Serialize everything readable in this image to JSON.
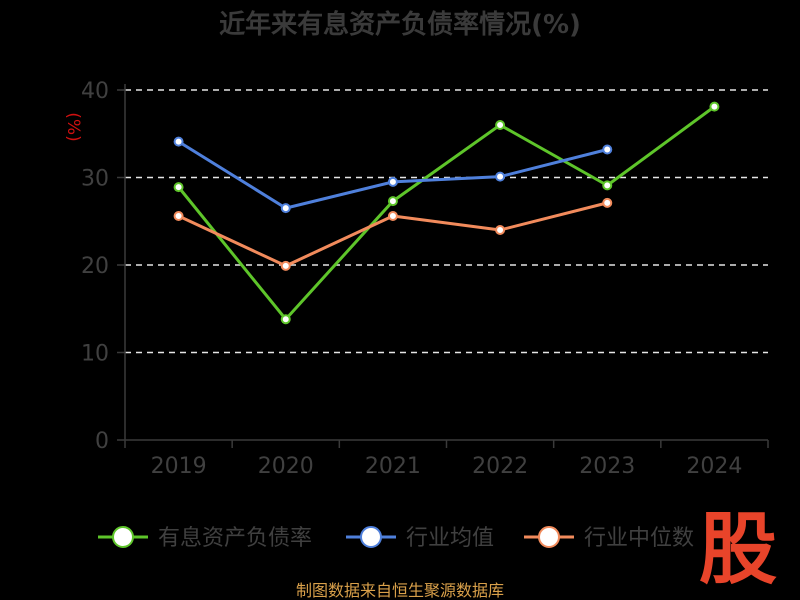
{
  "chart_data": {
    "type": "line",
    "title": "近年来有息资产负债率情况(%)",
    "ylabel": "(%)",
    "xlabel": "",
    "categories": [
      "2019",
      "2020",
      "2021",
      "2022",
      "2023",
      "2024"
    ],
    "ylim": [
      0,
      40
    ],
    "yticks": [
      0,
      10,
      20,
      30,
      40
    ],
    "grid": true,
    "legend_position": "bottom",
    "series": [
      {
        "name": "有息资产负债率",
        "color": "#5ec52a",
        "values": [
          28.9,
          13.8,
          27.3,
          36.0,
          29.1,
          38.1
        ]
      },
      {
        "name": "行业均值",
        "color": "#4f80dc",
        "values": [
          34.1,
          26.5,
          29.5,
          30.1,
          33.2,
          null
        ]
      },
      {
        "name": "行业中位数",
        "color": "#f28b5c",
        "values": [
          25.6,
          19.9,
          25.6,
          24.0,
          27.1,
          null
        ]
      }
    ]
  },
  "source": "制图数据来自恒生聚源数据库",
  "logo_text": "股"
}
